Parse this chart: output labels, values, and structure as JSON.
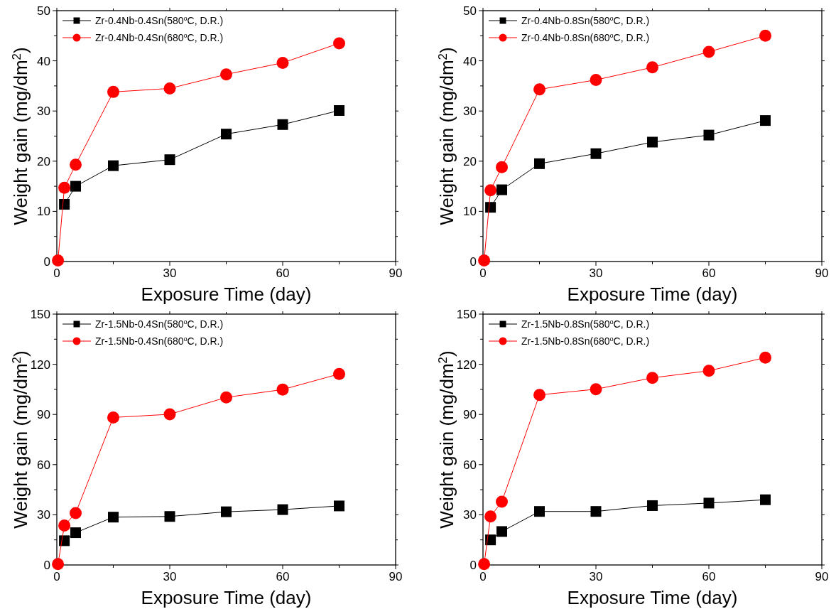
{
  "chart_data": [
    {
      "type": "line",
      "xlabel": "Exposure Time (day)",
      "ylabel": "Weight gain (mg/dm$^{2}$)",
      "xlim": [
        0,
        90
      ],
      "xticks": [
        0,
        {
          "value": 15,
          "label": null
        },
        30,
        {
          "value": 45,
          "label": null
        },
        60,
        {
          "value": 75,
          "label": null
        },
        90
      ],
      "ylim": [
        0,
        50
      ],
      "yticks": [
        0,
        {
          "value": 5,
          "label": null
        },
        10,
        {
          "value": 15,
          "label": null
        },
        20,
        {
          "value": 25,
          "label": null
        },
        30,
        {
          "value": 35,
          "label": null
        },
        40,
        {
          "value": 45,
          "label": null
        },
        50
      ],
      "legend": "top left",
      "grid": false,
      "x": [
        0.3,
        2,
        5,
        15,
        30,
        45,
        60,
        75
      ],
      "series": [
        {
          "name": "Zr-0.4Nb-0.4Sn(580$^{o}$C, D.R.)",
          "color": "#000000",
          "marker": "square",
          "values": [
            null,
            11.4,
            15,
            19.1,
            20.3,
            25.4,
            27.3,
            30.1
          ]
        },
        {
          "name": "Zr-0.4Nb-0.4Sn(680$^{o}$C, D.R.)",
          "color": "#ff0000",
          "marker": "circle",
          "values": [
            0.2,
            14.7,
            19.3,
            33.8,
            34.5,
            37.3,
            39.6,
            43.5
          ]
        }
      ]
    },
    {
      "type": "line",
      "xlabel": "Exposure Time (day)",
      "ylabel": "Weight gain (mg/dm$^{2}$)",
      "xlim": [
        0,
        90
      ],
      "xticks": [
        0,
        {
          "value": 15,
          "label": null
        },
        30,
        {
          "value": 45,
          "label": null
        },
        60,
        {
          "value": 75,
          "label": null
        },
        90
      ],
      "ylim": [
        0,
        50
      ],
      "yticks": [
        0,
        {
          "value": 5,
          "label": null
        },
        10,
        {
          "value": 15,
          "label": null
        },
        20,
        {
          "value": 25,
          "label": null
        },
        30,
        {
          "value": 35,
          "label": null
        },
        40,
        {
          "value": 45,
          "label": null
        },
        50
      ],
      "legend": "top left",
      "grid": false,
      "x": [
        0.3,
        2,
        5,
        15,
        30,
        45,
        60,
        75
      ],
      "series": [
        {
          "name": "Zr-0.4Nb-0.8Sn(580$^{o}$C, D.R.)",
          "color": "#000000",
          "marker": "square",
          "values": [
            null,
            10.8,
            14.3,
            19.5,
            21.5,
            23.8,
            25.2,
            28.1
          ]
        },
        {
          "name": "Zr-0.4Nb-0.8Sn(680$^{o}$C, D.R.)",
          "color": "#ff0000",
          "marker": "circle",
          "values": [
            0.2,
            14.2,
            18.8,
            34.3,
            36.2,
            38.7,
            41.8,
            45.0
          ]
        }
      ]
    },
    {
      "type": "line",
      "xlabel": "Exposure Time (day)",
      "ylabel": "Weight gain (mg/dm$^{2}$)",
      "xlim": [
        0,
        90
      ],
      "xticks": [
        0,
        {
          "value": 15,
          "label": null
        },
        30,
        {
          "value": 45,
          "label": null
        },
        60,
        {
          "value": 75,
          "label": null
        },
        90
      ],
      "ylim": [
        0,
        150
      ],
      "yticks": [
        0,
        {
          "value": 15,
          "label": null
        },
        30,
        {
          "value": 45,
          "label": null
        },
        60,
        {
          "value": 75,
          "label": null
        },
        90,
        {
          "value": 105,
          "label": null
        },
        120,
        {
          "value": 135,
          "label": null
        },
        150
      ],
      "legend": "top left",
      "grid": false,
      "x": [
        0.3,
        2,
        5,
        15,
        30,
        45,
        60,
        75
      ],
      "series": [
        {
          "name": "Zr-1.5Nb-0.4Sn(580$^{o}$C, D.R.)",
          "color": "#000000",
          "marker": "square",
          "values": [
            null,
            14.5,
            19.3,
            28.6,
            29.0,
            31.8,
            33.1,
            35.3
          ]
        },
        {
          "name": "Zr-1.5Nb-0.4Sn(680$^{o}$C, D.R.)",
          "color": "#ff0000",
          "marker": "circle",
          "values": [
            0.5,
            23.6,
            31.0,
            88.2,
            90.1,
            100.2,
            104.9,
            114.2
          ]
        }
      ]
    },
    {
      "type": "line",
      "xlabel": "Exposure Time (day)",
      "ylabel": "Weight gain (mg/dm$^{2}$)",
      "xlim": [
        0,
        90
      ],
      "xticks": [
        0,
        {
          "value": 15,
          "label": null
        },
        30,
        {
          "value": 45,
          "label": null
        },
        60,
        {
          "value": 75,
          "label": null
        },
        90
      ],
      "ylim": [
        0,
        150
      ],
      "yticks": [
        0,
        {
          "value": 15,
          "label": null
        },
        30,
        {
          "value": 45,
          "label": null
        },
        60,
        {
          "value": 75,
          "label": null
        },
        90,
        {
          "value": 105,
          "label": null
        },
        120,
        {
          "value": 135,
          "label": null
        },
        150
      ],
      "legend": "top left",
      "grid": false,
      "x": [
        0.3,
        2,
        5,
        15,
        30,
        45,
        60,
        75
      ],
      "series": [
        {
          "name": "Zr-1.5Nb-0.8Sn(580$^{o}$C, D.R.)",
          "color": "#000000",
          "marker": "square",
          "values": [
            null,
            15,
            20,
            32,
            32,
            35.5,
            37,
            39
          ]
        },
        {
          "name": "Zr-1.5Nb-0.8Sn(680$^{o}$C, D.R.)",
          "color": "#ff0000",
          "marker": "circle",
          "values": [
            0.5,
            29,
            37.8,
            101.7,
            105.1,
            111.9,
            116.1,
            124
          ]
        }
      ]
    }
  ]
}
